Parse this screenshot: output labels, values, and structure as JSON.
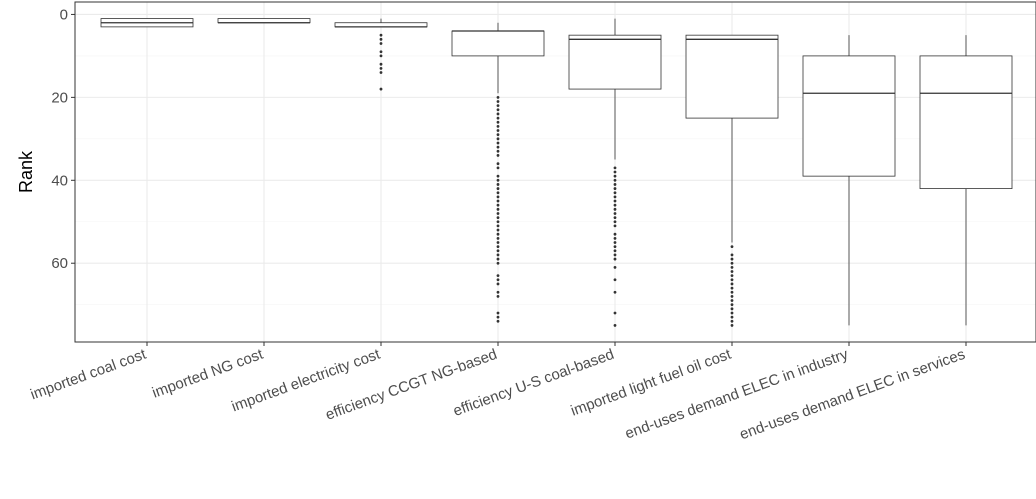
{
  "chart_data": {
    "type": "boxplot",
    "title": "",
    "xlabel": "",
    "ylabel": "Rank",
    "y_reversed": true,
    "ylim": [
      -3,
      79
    ],
    "yticks": [
      0,
      20,
      40,
      60
    ],
    "grid": true,
    "legend": "none",
    "colors": {
      "box_stroke": "#333333",
      "grid_major": "#ebebeb",
      "grid_minor": "#f5f5f5",
      "panel_border": "#333333",
      "tick_text": "#4d4d4d"
    },
    "categories": [
      "imported coal cost",
      "imported NG cost",
      "imported electricity cost",
      "efficiency CCGT NG-based",
      "efficiency U-S coal-based",
      "imported light fuel oil cost",
      "end-uses demand ELEC in industry",
      "end-uses demand ELEC in services"
    ],
    "boxes": [
      {
        "whisker_low": 1,
        "q1": 1,
        "median": 2,
        "q3": 3,
        "whisker_high": 3,
        "outliers": []
      },
      {
        "whisker_low": 1,
        "q1": 1,
        "median": 2,
        "q3": 2,
        "whisker_high": 2,
        "outliers": []
      },
      {
        "whisker_low": 1,
        "q1": 2,
        "median": 3,
        "q3": 3,
        "whisker_high": 3,
        "outliers": [
          5,
          6,
          7,
          9,
          10,
          12,
          13,
          14,
          18
        ]
      },
      {
        "whisker_low": 2,
        "q1": 4,
        "median": 4,
        "q3": 10,
        "whisker_high": 19,
        "outliers": [
          20,
          21,
          22,
          23,
          24,
          25,
          26,
          27,
          28,
          29,
          30,
          31,
          32,
          33,
          34,
          36,
          37,
          39,
          40,
          41,
          42,
          43,
          44,
          45,
          46,
          47,
          48,
          49,
          50,
          51,
          52,
          53,
          54,
          55,
          56,
          57,
          58,
          59,
          60,
          63,
          64,
          65,
          67,
          68,
          72,
          73,
          74
        ]
      },
      {
        "whisker_low": 1,
        "q1": 5,
        "median": 6,
        "q3": 18,
        "whisker_high": 35,
        "outliers": [
          37,
          38,
          39,
          40,
          41,
          42,
          43,
          44,
          45,
          46,
          47,
          48,
          49,
          50,
          51,
          53,
          54,
          55,
          56,
          57,
          58,
          59,
          61,
          64,
          67,
          72,
          75
        ]
      },
      {
        "whisker_low": 5,
        "q1": 5,
        "median": 6,
        "q3": 25,
        "whisker_high": 55,
        "outliers": [
          56,
          58,
          59,
          60,
          61,
          62,
          63,
          64,
          65,
          66,
          67,
          68,
          69,
          70,
          71,
          72,
          73,
          74,
          75
        ]
      },
      {
        "whisker_low": 5,
        "q1": 10,
        "median": 19,
        "q3": 39,
        "whisker_high": 75,
        "outliers": []
      },
      {
        "whisker_low": 5,
        "q1": 10,
        "median": 19,
        "q3": 42,
        "whisker_high": 75,
        "outliers": []
      }
    ]
  }
}
